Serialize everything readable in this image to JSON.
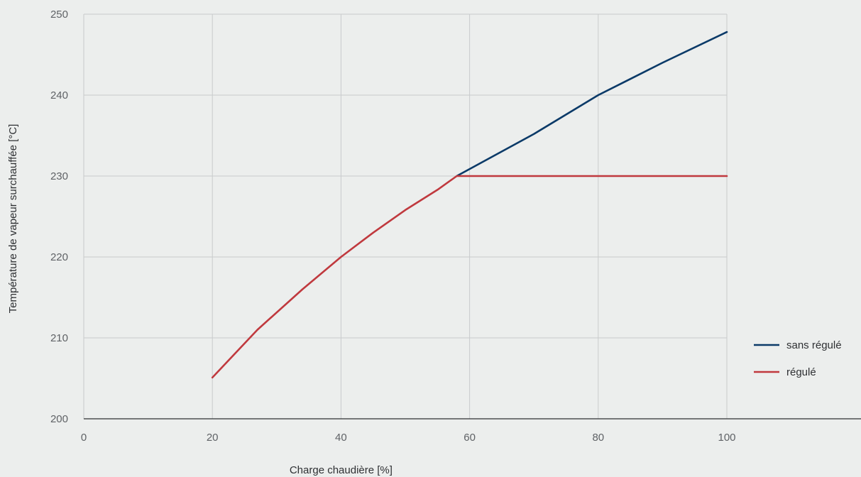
{
  "chart_data": {
    "type": "line",
    "title": "",
    "xlabel": "Charge chaudière [%]",
    "ylabel": "Température de vapeur surchauffée [°C]",
    "xlim": [
      0,
      120
    ],
    "ylim": [
      200,
      250
    ],
    "x_ticks": [
      0,
      20,
      40,
      60,
      80,
      100
    ],
    "y_ticks": [
      200,
      210,
      220,
      230,
      240,
      250
    ],
    "grid": true,
    "legend_position": "right",
    "series": [
      {
        "name": "sans régulé",
        "color": "#0b3a68",
        "points": [
          [
            58,
            230.0
          ],
          [
            70,
            235.2
          ],
          [
            80,
            240.0
          ],
          [
            90,
            244.0
          ],
          [
            100,
            247.8
          ]
        ]
      },
      {
        "name": "régulé",
        "color": "#c0393e",
        "points": [
          [
            20,
            205.1
          ],
          [
            27,
            211.0
          ],
          [
            34,
            216.0
          ],
          [
            40,
            220.0
          ],
          [
            45,
            223.0
          ],
          [
            50,
            225.8
          ],
          [
            55,
            228.3
          ],
          [
            58,
            230.0
          ],
          [
            100,
            230.0
          ]
        ]
      }
    ]
  }
}
